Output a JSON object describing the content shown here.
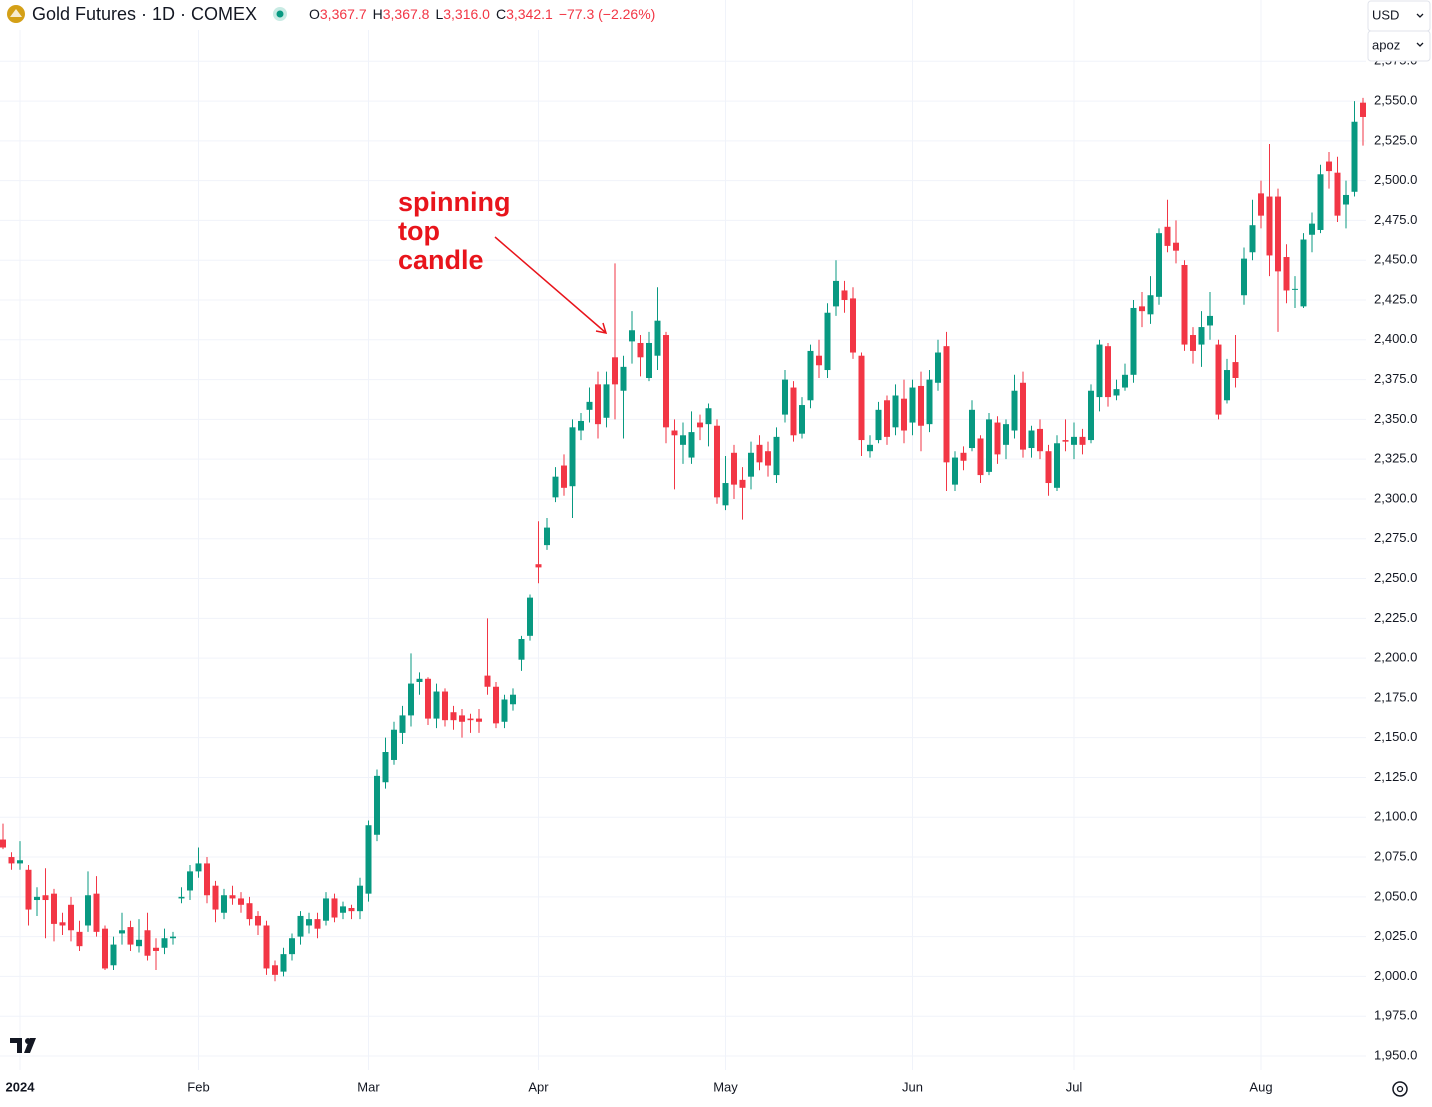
{
  "chart_data": {
    "type": "candlestick",
    "title": "Gold Futures · 1D · COMEX",
    "quote": [
      {
        "label": "O",
        "value": "3,367.7"
      },
      {
        "label": "H",
        "value": "3,367.8"
      },
      {
        "label": "L",
        "value": "3,316.0"
      },
      {
        "label": "C",
        "value": "3,342.1"
      }
    ],
    "change": "−77.3 (−2.26%)",
    "currency": "USD",
    "scale_menu": "apoz",
    "annotation": [
      "spinning",
      "top",
      "candle"
    ],
    "up_color": "#089981",
    "down_color": "#f23645",
    "grid": true,
    "ylim": [
      1941.2,
      2613.5
    ],
    "yticks": [
      {
        "value": 1950,
        "label": "1,950.0"
      },
      {
        "value": 1975,
        "label": "1,975.0"
      },
      {
        "value": 2000,
        "label": "2,000.0"
      },
      {
        "value": 2025,
        "label": "2,025.0"
      },
      {
        "value": 2050,
        "label": "2,050.0"
      },
      {
        "value": 2075,
        "label": "2,075.0"
      },
      {
        "value": 2100,
        "label": "2,100.0"
      },
      {
        "value": 2125,
        "label": "2,125.0"
      },
      {
        "value": 2150,
        "label": "2,150.0"
      },
      {
        "value": 2175,
        "label": "2,175.0"
      },
      {
        "value": 2200,
        "label": "2,200.0"
      },
      {
        "value": 2225,
        "label": "2,225.0"
      },
      {
        "value": 2250,
        "label": "2,250.0"
      },
      {
        "value": 2275,
        "label": "2,275.0"
      },
      {
        "value": 2300,
        "label": "2,300.0"
      },
      {
        "value": 2325,
        "label": "2,325.0"
      },
      {
        "value": 2350,
        "label": "2,350.0"
      },
      {
        "value": 2375,
        "label": "2,375.0"
      },
      {
        "value": 2400,
        "label": "2,400.0"
      },
      {
        "value": 2425,
        "label": "2,425.0"
      },
      {
        "value": 2450,
        "label": "2,450.0"
      },
      {
        "value": 2475,
        "label": "2,475.0"
      },
      {
        "value": 2500,
        "label": "2,500.0"
      },
      {
        "value": 2525,
        "label": "2,525.0"
      },
      {
        "value": 2550,
        "label": "2,550.0"
      },
      {
        "value": 2575,
        "label": "2,575.0"
      }
    ],
    "xticks": [
      {
        "value": 2,
        "label": "2024"
      },
      {
        "value": 23,
        "label": "Feb"
      },
      {
        "value": 43,
        "label": "Mar"
      },
      {
        "value": 63,
        "label": "Apr"
      },
      {
        "value": 85,
        "label": "May"
      },
      {
        "value": 107,
        "label": "Jun"
      },
      {
        "value": 126,
        "label": "Jul"
      },
      {
        "value": 148,
        "label": "Aug"
      }
    ],
    "open": [
      2086,
      2075,
      2071,
      2067,
      2048,
      2051,
      2052,
      2034,
      2045,
      2028,
      2032,
      2052,
      2030,
      2007,
      2027,
      2031,
      2019,
      2029,
      2018,
      2018,
      2024,
      2049,
      2054,
      2066,
      2071,
      2057,
      2040,
      2051,
      2049,
      2046,
      2038,
      2032,
      2007,
      2003,
      2014,
      2025,
      2032,
      2036,
      2035,
      2049,
      2040,
      2043,
      2041,
      2052,
      2089,
      2122,
      2136,
      2153,
      2164,
      2185,
      2187,
      2162,
      2179,
      2166,
      2164,
      2162,
      2162,
      2189,
      2182,
      2160,
      2171,
      2199,
      2214,
      2259,
      2271,
      2301,
      2321,
      2308,
      2343,
      2356,
      2372,
      2351,
      2389,
      2368,
      2399,
      2398,
      2376,
      2390,
      2403,
      2343,
      2334,
      2326,
      2348,
      2347,
      2346,
      2296,
      2329,
      2312,
      2314,
      2334,
      2330,
      2315,
      2353,
      2370,
      2341,
      2362,
      2390,
      2381,
      2421,
      2431,
      2426,
      2390,
      2330,
      2337,
      2362,
      2345,
      2363,
      2348,
      2371,
      2347,
      2373,
      2396,
      2309,
      2329,
      2332,
      2338,
      2317,
      2348,
      2334,
      2343,
      2373,
      2332,
      2344,
      2330,
      2307,
      2337,
      2334,
      2339,
      2337,
      2364,
      2396,
      2365,
      2370,
      2378,
      2421,
      2416,
      2427,
      2471,
      2461,
      2447,
      2403,
      2397,
      2409,
      2397,
      2362,
      2386,
      2428,
      2455,
      2492,
      2490,
      2490,
      2452,
      2432,
      2421,
      2466,
      2469,
      2512,
      2505,
      2485,
      2493,
      2549
    ],
    "high": [
      2096,
      2078,
      2085,
      2070,
      2056,
      2068,
      2055,
      2040,
      2050,
      2035,
      2066,
      2063,
      2032,
      2025,
      2040,
      2035,
      2036,
      2040,
      2024,
      2030,
      2028,
      2056,
      2070,
      2081,
      2075,
      2060,
      2055,
      2057,
      2053,
      2050,
      2041,
      2035,
      2010,
      2018,
      2027,
      2041,
      2040,
      2040,
      2053,
      2052,
      2047,
      2045,
      2062,
      2098,
      2130,
      2150,
      2160,
      2170,
      2203,
      2191,
      2188,
      2184,
      2181,
      2170,
      2168,
      2165,
      2168,
      2225,
      2185,
      2177,
      2181,
      2214,
      2240,
      2286,
      2288,
      2320,
      2328,
      2350,
      2354,
      2370,
      2380,
      2380,
      2448,
      2390,
      2418,
      2403,
      2405,
      2433,
      2405,
      2350,
      2348,
      2355,
      2353,
      2360,
      2350,
      2327,
      2334,
      2320,
      2336,
      2340,
      2336,
      2345,
      2381,
      2374,
      2364,
      2397,
      2400,
      2423,
      2450,
      2437,
      2433,
      2392,
      2340,
      2361,
      2365,
      2372,
      2375,
      2375,
      2380,
      2381,
      2400,
      2405,
      2330,
      2333,
      2362,
      2340,
      2354,
      2352,
      2350,
      2378,
      2380,
      2346,
      2350,
      2334,
      2340,
      2350,
      2348,
      2344,
      2372,
      2400,
      2398,
      2375,
      2385,
      2425,
      2430,
      2440,
      2470,
      2488,
      2475,
      2450,
      2408,
      2418,
      2430,
      2400,
      2388,
      2403,
      2458,
      2488,
      2500,
      2523,
      2495,
      2460,
      2440,
      2467,
      2480,
      2510,
      2518,
      2515,
      2500,
      2550,
      2552
    ],
    "low": [
      2080,
      2067,
      2067,
      2032,
      2038,
      2024,
      2022,
      2026,
      2022,
      2016,
      2028,
      2025,
      2004,
      2004,
      2020,
      2016,
      2015,
      2010,
      2004,
      2014,
      2020,
      2046,
      2048,
      2062,
      2046,
      2034,
      2036,
      2045,
      2040,
      2032,
      2026,
      2001,
      1997,
      2000,
      2010,
      2020,
      2027,
      2024,
      2032,
      2034,
      2036,
      2036,
      2036,
      2047,
      2085,
      2118,
      2133,
      2146,
      2157,
      2177,
      2158,
      2156,
      2157,
      2155,
      2150,
      2153,
      2153,
      2177,
      2156,
      2156,
      2167,
      2192,
      2211,
      2247,
      2268,
      2298,
      2302,
      2288,
      2337,
      2348,
      2338,
      2345,
      2350,
      2338,
      2385,
      2377,
      2374,
      2381,
      2335,
      2306,
      2322,
      2322,
      2337,
      2333,
      2297,
      2293,
      2300,
      2287,
      2306,
      2318,
      2314,
      2310,
      2348,
      2336,
      2338,
      2357,
      2376,
      2376,
      2415,
      2417,
      2388,
      2327,
      2326,
      2335,
      2334,
      2340,
      2335,
      2340,
      2330,
      2342,
      2368,
      2305,
      2305,
      2318,
      2330,
      2310,
      2315,
      2322,
      2325,
      2338,
      2326,
      2326,
      2325,
      2302,
      2305,
      2330,
      2325,
      2328,
      2335,
      2355,
      2358,
      2362,
      2368,
      2373,
      2408,
      2410,
      2422,
      2455,
      2448,
      2393,
      2385,
      2383,
      2400,
      2350,
      2360,
      2370,
      2422,
      2450,
      2470,
      2440,
      2405,
      2423,
      2420,
      2420,
      2455,
      2467,
      2495,
      2474,
      2470,
      2490,
      2522
    ],
    "close": [
      2081,
      2071,
      2073,
      2042,
      2050,
      2048,
      2033,
      2032,
      2029,
      2019,
      2051,
      2028,
      2005,
      2020,
      2029,
      2020,
      2023,
      2013,
      2016,
      2024,
      2025,
      2050,
      2066,
      2071,
      2051,
      2042,
      2051,
      2049,
      2045,
      2036,
      2032,
      2005,
      2001,
      2014,
      2024,
      2038,
      2036,
      2030,
      2049,
      2037,
      2044,
      2041,
      2057,
      2095,
      2126,
      2141,
      2155,
      2164,
      2184,
      2187,
      2162,
      2179,
      2161,
      2161,
      2160,
      2161,
      2160,
      2182,
      2159,
      2174,
      2177,
      2212,
      2238,
      2257,
      2282,
      2314,
      2307,
      2345,
      2349,
      2361,
      2347,
      2372,
      2372,
      2383,
      2406,
      2389,
      2398,
      2412,
      2345,
      2340,
      2340,
      2342,
      2345,
      2357,
      2301,
      2310,
      2309,
      2307,
      2329,
      2323,
      2321,
      2339,
      2375,
      2340,
      2359,
      2393,
      2384,
      2417,
      2437,
      2425,
      2392,
      2337,
      2334,
      2356,
      2339,
      2365,
      2343,
      2370,
      2346,
      2375,
      2392,
      2323,
      2326,
      2324,
      2356,
      2315,
      2350,
      2328,
      2347,
      2368,
      2331,
      2343,
      2330,
      2310,
      2335,
      2336,
      2339,
      2334,
      2368,
      2397,
      2364,
      2369,
      2378,
      2420,
      2418,
      2428,
      2467,
      2459,
      2456,
      2397,
      2393,
      2408,
      2415,
      2353,
      2381,
      2376,
      2451,
      2472,
      2478,
      2453,
      2443,
      2431,
      2432,
      2463,
      2473,
      2504,
      2506,
      2478,
      2491,
      2537,
      2540
    ]
  }
}
